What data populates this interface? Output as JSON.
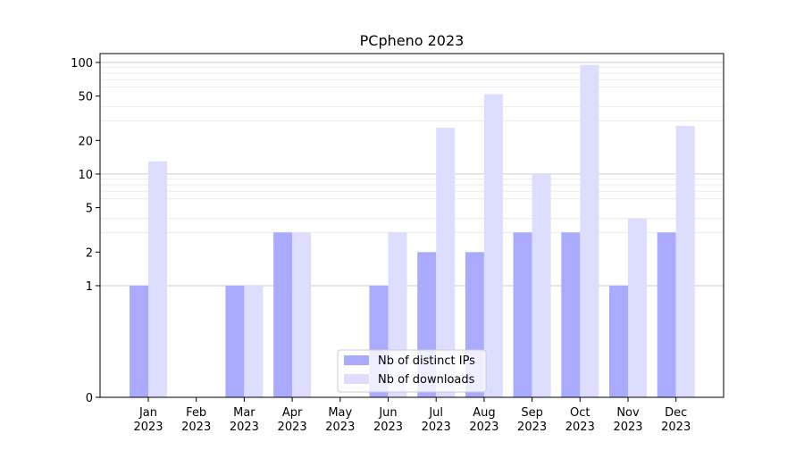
{
  "chart_data": {
    "type": "bar",
    "title": "PCpheno 2023",
    "xlabel": "",
    "ylabel": "",
    "y_scale": "symlog",
    "ylim": [
      0,
      120
    ],
    "y_ticks": [
      0,
      1,
      2,
      5,
      10,
      20,
      50,
      100
    ],
    "grid": "horizontal",
    "legend_position": "lower center",
    "categories": [
      "Jan",
      "Feb",
      "Mar",
      "Apr",
      "May",
      "Jun",
      "Jul",
      "Aug",
      "Sep",
      "Oct",
      "Nov",
      "Dec"
    ],
    "category_sublabels": [
      "2023",
      "2023",
      "2023",
      "2023",
      "2023",
      "2023",
      "2023",
      "2023",
      "2023",
      "2023",
      "2023",
      "2023"
    ],
    "series": [
      {
        "name": "Nb of distinct IPs",
        "color": "#aaaaff",
        "values": [
          1,
          0,
          1,
          3,
          0,
          1,
          2,
          2,
          3,
          3,
          1,
          3
        ]
      },
      {
        "name": "Nb of downloads",
        "color": "#ddddff",
        "values": [
          13,
          0,
          1,
          3,
          0,
          3,
          26,
          52,
          10,
          95,
          4,
          27
        ]
      }
    ]
  }
}
